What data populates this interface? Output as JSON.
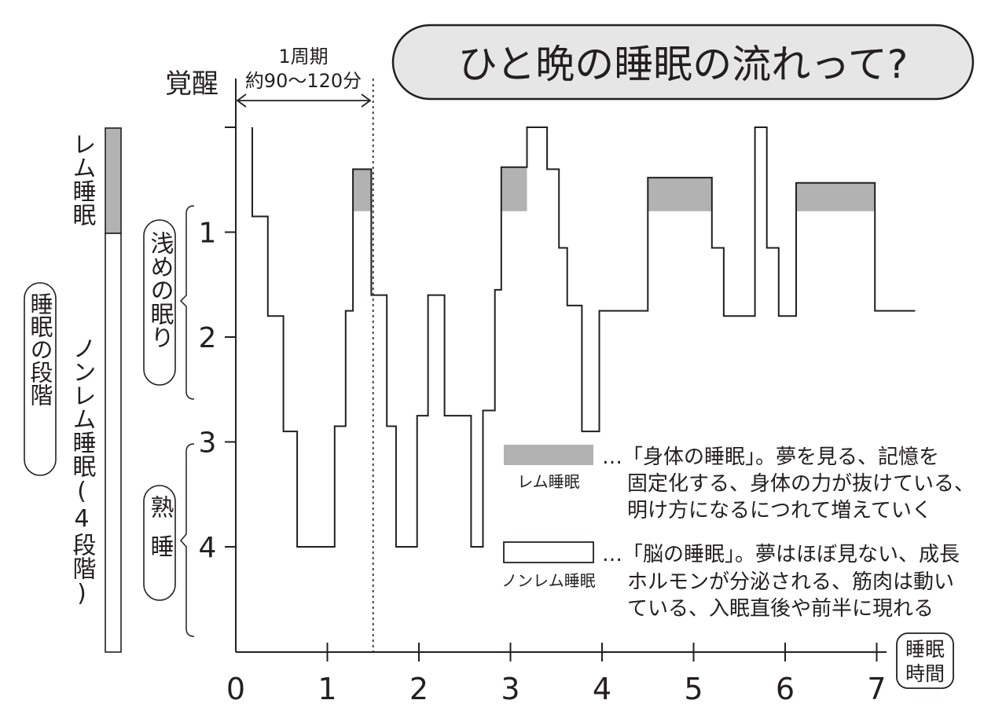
{
  "title": "ひと晩の睡眠の流れって?",
  "cycle_label": {
    "line1": "1周期",
    "line2": "約90〜120分"
  },
  "awake_label": "覚醒",
  "x_axis_label": {
    "line1": "睡眠",
    "line2": "時間"
  },
  "stage_bar": {
    "rem_label": "レム睡眠",
    "nonrem_label": "ノンレム睡眠(4段階)",
    "group_label": "睡眠の段階"
  },
  "y_groups": {
    "light": "浅めの眠り",
    "deep": "熟睡"
  },
  "legend": {
    "rem": {
      "label": "レム睡眠",
      "lines": [
        "…「身体の睡眠」。夢を見る、記憶を",
        "固定化する、身体の力が抜けている、",
        "明け方になるにつれて増えていく"
      ]
    },
    "nonrem": {
      "label": "ノンレム睡眠",
      "lines": [
        "…「脳の睡眠」。夢はほぼ見ない、成長",
        "ホルモンが分泌される、筋肉は動い",
        "ている、入眠直後や前半に現れる"
      ]
    }
  },
  "colors": {
    "rem_fill": "#b2b2b2",
    "line": "#231f20",
    "title_bg": "#e6e6e6"
  },
  "chart_data": {
    "type": "line",
    "x_unit": "睡眠時間",
    "y_unit": "睡眠の段階",
    "xlim": [
      0,
      7
    ],
    "x_ticks": [
      "0",
      "1",
      "2",
      "3",
      "4",
      "5",
      "6",
      "7"
    ],
    "y_ticks": [
      "1",
      "2",
      "3",
      "4"
    ],
    "y_note": "0 = 覚醒, 1–4 = ノンレム睡眠の段階, REM drawn between 0.4 and 0.8",
    "cycle_boundary_x": 1.5,
    "hypnogram": [
      [
        0.18,
        0.0
      ],
      [
        0.18,
        0.85
      ],
      [
        0.35,
        0.85
      ],
      [
        0.35,
        1.8
      ],
      [
        0.52,
        1.8
      ],
      [
        0.52,
        2.9
      ],
      [
        0.67,
        2.9
      ],
      [
        0.67,
        4.0
      ],
      [
        1.08,
        4.0
      ],
      [
        1.08,
        2.85
      ],
      [
        1.2,
        2.85
      ],
      [
        1.2,
        1.75
      ],
      [
        1.28,
        1.75
      ],
      [
        1.28,
        0.4
      ],
      [
        1.48,
        0.4
      ],
      [
        1.48,
        1.6
      ],
      [
        1.65,
        1.6
      ],
      [
        1.65,
        2.85
      ],
      [
        1.75,
        2.85
      ],
      [
        1.75,
        4.0
      ],
      [
        1.98,
        4.0
      ],
      [
        1.98,
        2.75
      ],
      [
        2.1,
        2.75
      ],
      [
        2.1,
        1.6
      ],
      [
        2.28,
        1.6
      ],
      [
        2.28,
        2.75
      ],
      [
        2.57,
        2.75
      ],
      [
        2.57,
        4.0
      ],
      [
        2.7,
        4.0
      ],
      [
        2.7,
        2.7
      ],
      [
        2.83,
        2.7
      ],
      [
        2.83,
        1.55
      ],
      [
        2.9,
        1.55
      ],
      [
        2.9,
        0.38
      ],
      [
        3.18,
        0.38
      ],
      [
        3.18,
        0.0
      ],
      [
        3.4,
        0.0
      ],
      [
        3.4,
        0.4
      ],
      [
        3.53,
        0.4
      ],
      [
        3.53,
        1.15
      ],
      [
        3.62,
        1.15
      ],
      [
        3.62,
        1.7
      ],
      [
        3.78,
        1.7
      ],
      [
        3.78,
        2.9
      ],
      [
        3.97,
        2.9
      ],
      [
        3.97,
        1.75
      ],
      [
        4.5,
        1.75
      ],
      [
        4.5,
        0.48
      ],
      [
        5.2,
        0.48
      ],
      [
        5.2,
        1.15
      ],
      [
        5.33,
        1.15
      ],
      [
        5.33,
        1.8
      ],
      [
        5.67,
        1.8
      ],
      [
        5.67,
        0.0
      ],
      [
        5.8,
        0.0
      ],
      [
        5.8,
        1.15
      ],
      [
        5.93,
        1.15
      ],
      [
        5.93,
        1.8
      ],
      [
        6.12,
        1.8
      ],
      [
        6.12,
        0.53
      ],
      [
        6.98,
        0.53
      ],
      [
        6.98,
        1.75
      ],
      [
        7.42,
        1.75
      ]
    ],
    "rem_periods": [
      {
        "start": 1.28,
        "end": 1.48
      },
      {
        "start": 2.9,
        "end": 3.18
      },
      {
        "start": 4.5,
        "end": 5.2
      },
      {
        "start": 6.12,
        "end": 6.98
      }
    ]
  }
}
